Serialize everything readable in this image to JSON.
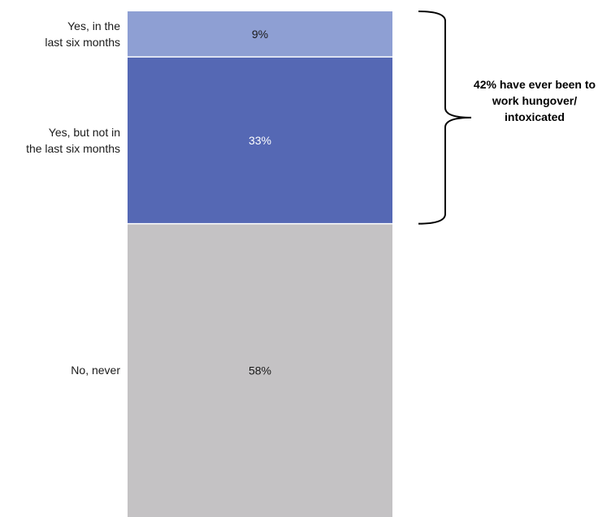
{
  "chart_data": {
    "type": "bar",
    "stacked": true,
    "orientation": "vertical",
    "categories": [
      "Yes, in the\nlast six months",
      "Yes, but not in\nthe last six months",
      "No, never"
    ],
    "values": [
      9,
      33,
      58
    ],
    "value_labels": [
      "9%",
      "33%",
      "58%"
    ],
    "colors": [
      "#8e9fd3",
      "#5568b4",
      "#c4c2c4"
    ],
    "label_colors": [
      "#1a1a1a",
      "#ffffff",
      "#1a1a1a"
    ],
    "total": 100,
    "annotation": {
      "text": "42% have ever been to\nwork hungover/\nintoxicated",
      "spans_categories": [
        0,
        1
      ],
      "value": 42
    }
  }
}
